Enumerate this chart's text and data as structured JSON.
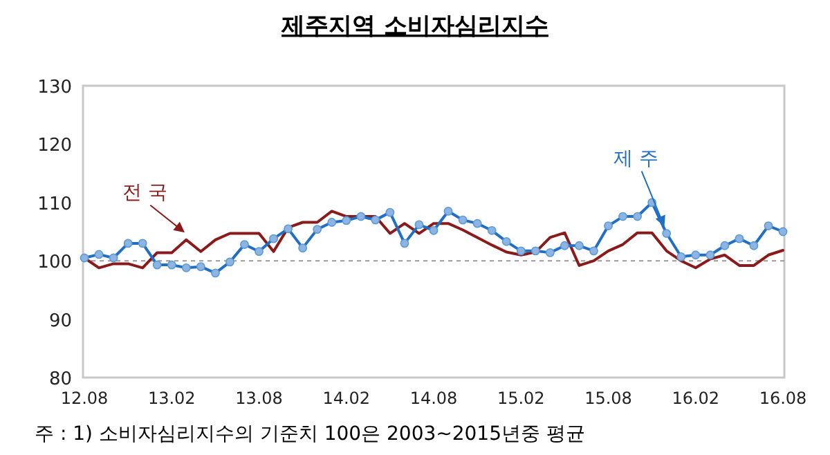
{
  "chart_data": {
    "type": "line",
    "title": "제주지역 소비자심리지수",
    "categories": [
      "12.08",
      null,
      null,
      null,
      null,
      null,
      "13.02",
      null,
      null,
      null,
      null,
      null,
      "13.08",
      null,
      null,
      null,
      null,
      null,
      "14.02",
      null,
      null,
      null,
      null,
      null,
      "14.08",
      null,
      null,
      null,
      null,
      null,
      "15.02",
      null,
      null,
      null,
      null,
      null,
      "15.08",
      null,
      null,
      null,
      null,
      null,
      "16.02",
      null,
      null,
      null,
      null,
      null,
      "16.08"
    ],
    "series": [
      {
        "name": "전 국",
        "color": "#8b1a1a",
        "marker": "none",
        "values": [
          100.5,
          98.8,
          99.5,
          99.5,
          98.8,
          101.4,
          101.4,
          103.6,
          101.6,
          103.6,
          104.7,
          104.7,
          104.7,
          101.6,
          105.7,
          106.6,
          106.6,
          108.5,
          107.6,
          107.6,
          107.6,
          104.7,
          106.4,
          104.7,
          106.4,
          106.4,
          105.3,
          104,
          102.7,
          101.5,
          101,
          101.5,
          104,
          104.8,
          99.2,
          100,
          101.7,
          102.8,
          104.8,
          104.8,
          101.7,
          100,
          98.8,
          100.3,
          101,
          99.2,
          99.2,
          101,
          101.8
        ]
      },
      {
        "name": "제 주",
        "color": "#1f6fc5",
        "marker": "circle",
        "values": [
          100.5,
          101.1,
          100.5,
          103,
          103,
          99.3,
          99.3,
          98.8,
          99,
          97.9,
          99.8,
          102.8,
          101.6,
          103.8,
          105.5,
          102.2,
          105.4,
          106.6,
          106.9,
          107.6,
          107,
          108.3,
          103,
          106.2,
          105.2,
          108.5,
          107,
          106.4,
          105.2,
          103.3,
          101.7,
          101.7,
          101.4,
          102.6,
          102.6,
          101.7,
          106,
          107.6,
          107.6,
          110,
          104.7,
          100.7,
          101,
          101,
          102.6,
          103.8,
          102.6,
          106,
          105
        ]
      }
    ],
    "ylim": [
      80,
      130
    ],
    "yticks": [
      80,
      90,
      100,
      110,
      120,
      130
    ],
    "ref_lines": [
      {
        "axis": "y",
        "value": 100,
        "color": "#999999",
        "line_style": "dashed"
      }
    ],
    "grid": false,
    "annotations": [
      "주 : 1) 소비자심리지수의 기준치 100은 2003~2015년중 평균"
    ]
  }
}
